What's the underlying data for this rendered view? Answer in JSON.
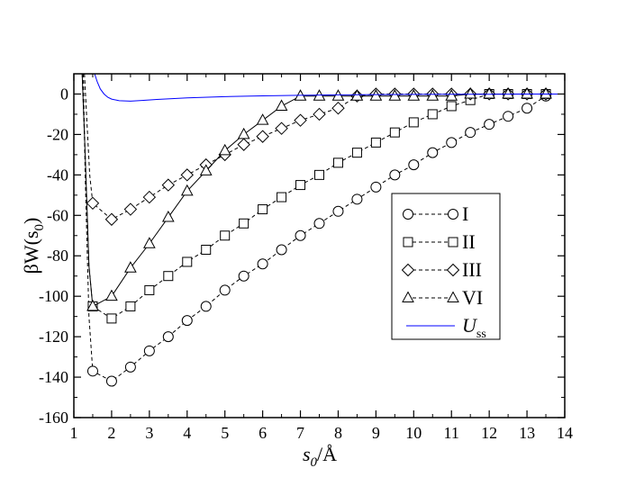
{
  "chart_data": {
    "type": "line",
    "xlabel": {
      "main": "s",
      "sub": "0",
      "tail": "/Å"
    },
    "ylabel": {
      "pre": "βW(s",
      "sub": "0",
      "post": ")"
    },
    "xlim": [
      1,
      14
    ],
    "ylim": [
      -160,
      10
    ],
    "xticks": [
      1,
      2,
      3,
      4,
      5,
      6,
      7,
      8,
      9,
      10,
      11,
      12,
      13,
      14
    ],
    "yticks": [
      0,
      -20,
      -40,
      -60,
      -80,
      -100,
      -120,
      -140,
      -160
    ],
    "grid": false,
    "legend_position": "center-right",
    "series": [
      {
        "name": "I",
        "marker": "circle",
        "line": "dashed",
        "color": "#000000",
        "x": [
          1.5,
          2.0,
          2.5,
          3.0,
          3.5,
          4.0,
          4.5,
          5.0,
          5.5,
          6.0,
          6.5,
          7.0,
          7.5,
          8.0,
          8.5,
          9.0,
          9.5,
          10.0,
          10.5,
          11.0,
          11.5,
          12.0,
          12.5,
          13.0,
          13.5
        ],
        "y": [
          -137,
          -142,
          -135,
          -127,
          -120,
          -112,
          -105,
          -97,
          -90,
          -84,
          -77,
          -70,
          -64,
          -58,
          -52,
          -46,
          -40,
          -35,
          -29,
          -24,
          -19,
          -15,
          -11,
          -7,
          -1
        ],
        "extra_line": {
          "x": [
            1.25,
            1.3,
            1.4,
            1.5
          ],
          "y": [
            10,
            -40,
            -110,
            -137
          ]
        }
      },
      {
        "name": "II",
        "marker": "square",
        "line": "dashed",
        "color": "#000000",
        "x": [
          1.5,
          2.0,
          2.5,
          3.0,
          3.5,
          4.0,
          4.5,
          5.0,
          5.5,
          6.0,
          6.5,
          7.0,
          7.5,
          8.0,
          8.5,
          9.0,
          9.5,
          10.0,
          10.5,
          11.0,
          11.5,
          12.0,
          12.5,
          13.0,
          13.5
        ],
        "y": [
          -105,
          -111,
          -105,
          -97,
          -90,
          -83,
          -77,
          -70,
          -64,
          -57,
          -51,
          -45,
          -40,
          -34,
          -29,
          -24,
          -19,
          -14,
          -10,
          -6,
          -3,
          0,
          0,
          0,
          0
        ],
        "extra_line": {
          "x": [
            1.22,
            1.3,
            1.4,
            1.5
          ],
          "y": [
            10,
            -30,
            -85,
            -105
          ]
        }
      },
      {
        "name": "III",
        "marker": "diamond",
        "line": "dashed",
        "color": "#000000",
        "x": [
          1.5,
          2.0,
          2.5,
          3.0,
          3.5,
          4.0,
          4.5,
          5.0,
          5.5,
          6.0,
          6.5,
          7.0,
          7.5,
          8.0,
          8.5,
          9.0,
          9.5,
          10.0,
          10.5,
          11.0,
          11.5,
          12.0,
          12.5,
          13.0,
          13.5
        ],
        "y": [
          -54,
          -62,
          -57,
          -51,
          -45,
          -40,
          -35,
          -30,
          -25,
          -21,
          -17,
          -13,
          -10,
          -7,
          -1,
          0,
          0,
          0,
          0,
          0,
          0,
          0,
          0,
          0,
          0
        ],
        "extra_line": {
          "x": [
            1.28,
            1.35,
            1.42,
            1.5
          ],
          "y": [
            10,
            -15,
            -40,
            -54
          ]
        }
      },
      {
        "name": "VI",
        "marker": "triangle",
        "line": "dashed",
        "solid_line": true,
        "color": "#000000",
        "x": [
          1.5,
          2.0,
          2.5,
          3.0,
          3.5,
          4.0,
          4.5,
          5.0,
          5.5,
          6.0,
          6.5,
          7.0,
          7.5,
          8.0,
          8.5,
          9.0,
          9.5,
          10.0,
          10.5,
          11.0,
          11.5,
          12.0,
          12.5,
          13.0,
          13.5
        ],
        "y": [
          -105,
          -100,
          -86,
          -74,
          -61,
          -48,
          -38,
          -28,
          -20,
          -13,
          -6,
          -1,
          -1,
          -1,
          -1,
          -1,
          -1,
          -1,
          -1,
          -1,
          0,
          0,
          0,
          0,
          0
        ],
        "extra_line": {
          "x": [
            1.22,
            1.3,
            1.4,
            1.5
          ],
          "y": [
            10,
            -30,
            -85,
            -105
          ]
        }
      },
      {
        "name_main": "U",
        "name_sub": "ss",
        "marker": "none",
        "line": "solid",
        "color": "#0000ff",
        "x": [
          1.55,
          1.62,
          1.7,
          1.8,
          1.9,
          2.0,
          2.2,
          2.5,
          2.8,
          3.2,
          3.6,
          4.0,
          5.0,
          6.0,
          7.0,
          8.0,
          9.0,
          10.0,
          11.0,
          12.0,
          13.0,
          14.0
        ],
        "y": [
          10,
          6,
          2.5,
          0,
          -1.6,
          -2.5,
          -3.3,
          -3.5,
          -3.2,
          -2.7,
          -2.3,
          -1.9,
          -1.3,
          -0.9,
          -0.6,
          -0.4,
          -0.3,
          -0.2,
          -0.1,
          -0.1,
          0,
          0
        ]
      }
    ]
  }
}
